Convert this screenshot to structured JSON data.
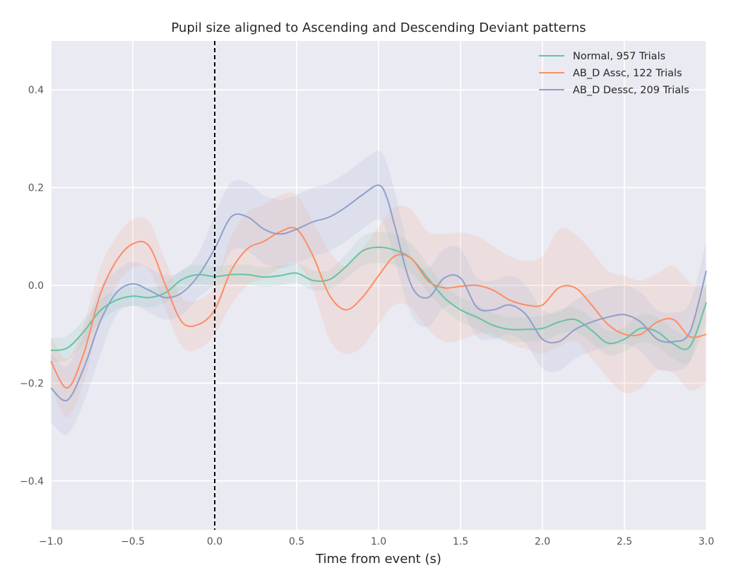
{
  "chart_data": {
    "type": "line",
    "title": "Pupil size aligned to Ascending and Descending Deviant patterns",
    "xlabel": "Time from event (s)",
    "ylabel": "",
    "xlim": [
      -1.0,
      3.0
    ],
    "ylim": [
      -0.5,
      0.5
    ],
    "xticks": [
      -1.0,
      -0.5,
      0.0,
      0.5,
      1.0,
      1.5,
      2.0,
      2.5,
      3.0
    ],
    "xtick_labels": [
      "−1.0",
      "−0.5",
      "0.0",
      "0.5",
      "1.0",
      "1.5",
      "2.0",
      "2.5",
      "3.0"
    ],
    "yticks": [
      -0.4,
      -0.2,
      0.0,
      0.2,
      0.4
    ],
    "ytick_labels": [
      "−0.4",
      "−0.2",
      "0.0",
      "0.2",
      "0.4"
    ],
    "grid": true,
    "legend_position": "top-right",
    "vline": {
      "x": 0.0,
      "style": "dashed",
      "color": "#000000"
    },
    "background": "#eaeaf2",
    "series": [
      {
        "name": "Normal, 957 Trials",
        "color": "#66c2a5",
        "band_color": "#66c2a5",
        "x": [
          -1.0,
          -0.9,
          -0.8,
          -0.7,
          -0.6,
          -0.5,
          -0.4,
          -0.3,
          -0.2,
          -0.1,
          0.0,
          0.1,
          0.2,
          0.3,
          0.4,
          0.5,
          0.6,
          0.7,
          0.8,
          0.9,
          1.0,
          1.1,
          1.2,
          1.3,
          1.4,
          1.5,
          1.6,
          1.7,
          1.8,
          1.9,
          2.0,
          2.1,
          2.2,
          2.3,
          2.4,
          2.5,
          2.6,
          2.7,
          2.8,
          2.9,
          3.0
        ],
        "values": [
          -0.133,
          -0.128,
          -0.095,
          -0.052,
          -0.03,
          -0.022,
          -0.025,
          -0.015,
          0.012,
          0.022,
          0.018,
          0.022,
          0.022,
          0.017,
          0.02,
          0.025,
          0.01,
          0.012,
          0.038,
          0.07,
          0.078,
          0.072,
          0.055,
          0.015,
          -0.025,
          -0.05,
          -0.065,
          -0.082,
          -0.09,
          -0.09,
          -0.088,
          -0.075,
          -0.07,
          -0.092,
          -0.118,
          -0.11,
          -0.088,
          -0.095,
          -0.12,
          -0.125,
          -0.035
        ],
        "band": [
          0.025,
          0.025,
          0.025,
          0.022,
          0.02,
          0.02,
          0.02,
          0.02,
          0.02,
          0.02,
          0.02,
          0.02,
          0.02,
          0.02,
          0.02,
          0.02,
          0.02,
          0.02,
          0.025,
          0.03,
          0.032,
          0.032,
          0.03,
          0.028,
          0.025,
          0.025,
          0.025,
          0.025,
          0.025,
          0.025,
          0.025,
          0.025,
          0.025,
          0.025,
          0.025,
          0.025,
          0.028,
          0.03,
          0.03,
          0.03,
          0.04
        ]
      },
      {
        "name": "AB_D Assc, 122 Trials",
        "color": "#fc8d62",
        "band_color": "#fc8d62",
        "x": [
          -1.0,
          -0.9,
          -0.8,
          -0.7,
          -0.6,
          -0.5,
          -0.4,
          -0.3,
          -0.2,
          -0.1,
          0.0,
          0.1,
          0.2,
          0.3,
          0.4,
          0.5,
          0.6,
          0.7,
          0.8,
          0.9,
          1.0,
          1.1,
          1.2,
          1.3,
          1.4,
          1.5,
          1.6,
          1.7,
          1.8,
          1.9,
          2.0,
          2.1,
          2.2,
          2.3,
          2.4,
          2.5,
          2.6,
          2.7,
          2.8,
          2.9,
          3.0
        ],
        "values": [
          -0.155,
          -0.21,
          -0.14,
          -0.02,
          0.05,
          0.085,
          0.08,
          0.0,
          -0.075,
          -0.08,
          -0.05,
          0.03,
          0.075,
          0.09,
          0.11,
          0.115,
          0.06,
          -0.02,
          -0.05,
          -0.025,
          0.02,
          0.06,
          0.055,
          0.01,
          -0.005,
          -0.002,
          0.0,
          -0.01,
          -0.03,
          -0.04,
          -0.04,
          -0.005,
          -0.005,
          -0.04,
          -0.08,
          -0.1,
          -0.1,
          -0.075,
          -0.07,
          -0.105,
          -0.1
        ],
        "band": [
          0.05,
          0.06,
          0.06,
          0.055,
          0.05,
          0.05,
          0.05,
          0.05,
          0.05,
          0.05,
          0.05,
          0.07,
          0.075,
          0.075,
          0.075,
          0.07,
          0.07,
          0.09,
          0.09,
          0.1,
          0.1,
          0.1,
          0.1,
          0.1,
          0.11,
          0.11,
          0.1,
          0.09,
          0.09,
          0.09,
          0.1,
          0.12,
          0.11,
          0.11,
          0.11,
          0.12,
          0.11,
          0.1,
          0.11,
          0.11,
          0.1
        ]
      },
      {
        "name": "AB_D Dessc, 209 Trials",
        "color": "#8da0cb",
        "band_color": "#8da0cb",
        "x": [
          -1.0,
          -0.9,
          -0.8,
          -0.7,
          -0.6,
          -0.5,
          -0.4,
          -0.3,
          -0.2,
          -0.1,
          0.0,
          0.1,
          0.2,
          0.3,
          0.4,
          0.5,
          0.6,
          0.7,
          0.8,
          0.9,
          1.0,
          1.05,
          1.1,
          1.2,
          1.3,
          1.4,
          1.5,
          1.6,
          1.7,
          1.8,
          1.9,
          2.0,
          2.1,
          2.2,
          2.3,
          2.4,
          2.5,
          2.6,
          2.7,
          2.8,
          2.9,
          3.0
        ],
        "values": [
          -0.21,
          -0.235,
          -0.17,
          -0.075,
          -0.015,
          0.003,
          -0.01,
          -0.025,
          -0.015,
          0.02,
          0.075,
          0.14,
          0.14,
          0.115,
          0.105,
          0.115,
          0.13,
          0.14,
          0.16,
          0.185,
          0.205,
          0.18,
          0.12,
          0.0,
          -0.025,
          0.015,
          0.015,
          -0.045,
          -0.05,
          -0.04,
          -0.06,
          -0.11,
          -0.115,
          -0.09,
          -0.075,
          -0.065,
          -0.06,
          -0.075,
          -0.11,
          -0.115,
          -0.095,
          0.03
        ]
      }
    ]
  }
}
